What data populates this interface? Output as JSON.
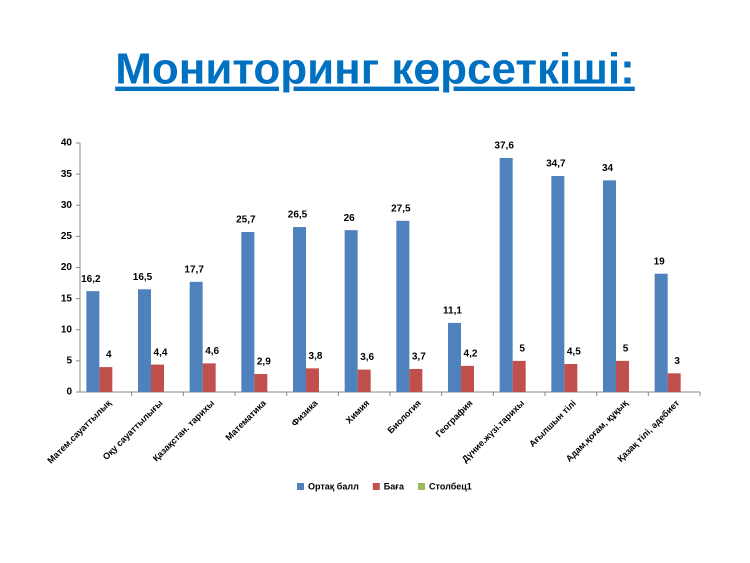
{
  "chart_data": {
    "type": "bar",
    "title": "Мониторинг көрсеткіші:",
    "categories": [
      "Матем.сауаттылық",
      "Оқу сауаттылығы",
      "Қазақстан. тарихы",
      "Математика",
      "Физика",
      "Химия",
      "Биология",
      "География",
      "Дүние.жүзі.тарихы",
      "Ағылшын тілі",
      "Адам,қоғам, құқық",
      "Қазақ тілі, әдебиет"
    ],
    "series": [
      {
        "name": "Ортақ балл",
        "color": "#4f81bd",
        "values": [
          16.2,
          16.5,
          17.7,
          25.7,
          26.5,
          26,
          27.5,
          11.1,
          37.6,
          34.7,
          34,
          19
        ],
        "value_labels": [
          "16,2",
          "16,5",
          "17,7",
          "25,7",
          "26,5",
          "26",
          "27,5",
          "11,1",
          "37,6",
          "34,7",
          "34",
          "19"
        ]
      },
      {
        "name": "Баға",
        "color": "#c0504d",
        "values": [
          4,
          4.4,
          4.6,
          2.9,
          3.8,
          3.6,
          3.7,
          4.2,
          5,
          4.5,
          5,
          3
        ],
        "value_labels": [
          "4",
          "4,4",
          "4,6",
          "2,9",
          "3,8",
          "3,6",
          "3,7",
          "4,2",
          "5",
          "4,5",
          "5",
          "3"
        ]
      },
      {
        "name": "Столбец1",
        "color": "#9bbb59",
        "values": [
          null,
          null,
          null,
          null,
          null,
          null,
          null,
          null,
          null,
          null,
          null,
          null
        ]
      }
    ],
    "ylim": [
      0,
      40
    ],
    "yticks": [
      0,
      5,
      10,
      15,
      20,
      25,
      30,
      35,
      40
    ],
    "grid": false,
    "legend": "bottom"
  }
}
